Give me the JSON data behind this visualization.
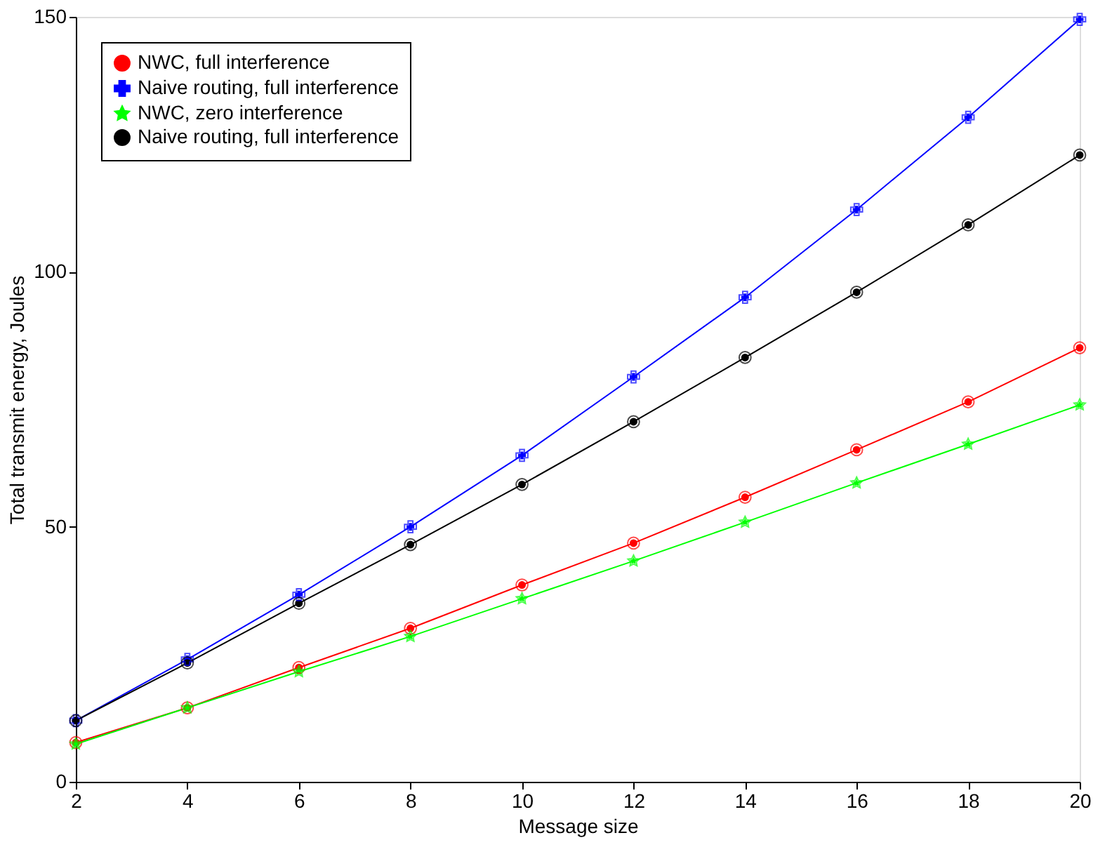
{
  "chart_data": {
    "type": "line",
    "xlabel": "Message size",
    "ylabel": "Total transmit energy, Joules",
    "x": [
      2,
      4,
      6,
      8,
      10,
      12,
      14,
      16,
      18,
      20
    ],
    "xlim": [
      2,
      20
    ],
    "xticks": [
      2,
      4,
      6,
      8,
      10,
      12,
      14,
      16,
      18,
      20
    ],
    "ylim": [
      0,
      150
    ],
    "yticks": [
      0,
      50,
      100,
      150
    ],
    "grid": false,
    "legend": "top left",
    "line_style": "solid",
    "series": [
      {
        "name": "NWC, full interference",
        "color": "#ff0000",
        "marker": "circle",
        "values": [
          7.7,
          14.5,
          22.4,
          30.1,
          38.6,
          46.8,
          55.8,
          65.1,
          74.5,
          85.1
        ]
      },
      {
        "name": "Naive routing, full interference",
        "color": "#0000ff",
        "marker": "cross",
        "values": [
          12,
          24,
          36.7,
          50,
          64,
          79.4,
          95,
          112.2,
          130.3,
          149.5
        ]
      },
      {
        "name": "NWC, zero interference",
        "color": "#00ff00",
        "marker": "star",
        "values": [
          7.4,
          14.5,
          21.6,
          28.5,
          35.9,
          43.3,
          50.9,
          58.6,
          66.2,
          73.9
        ]
      },
      {
        "name": "Naive routing, full interference",
        "color": "#000000",
        "marker": "circle",
        "values": [
          12,
          23.3,
          35,
          46.5,
          58.3,
          70.6,
          83.2,
          96,
          109.2,
          122.9
        ]
      }
    ]
  }
}
